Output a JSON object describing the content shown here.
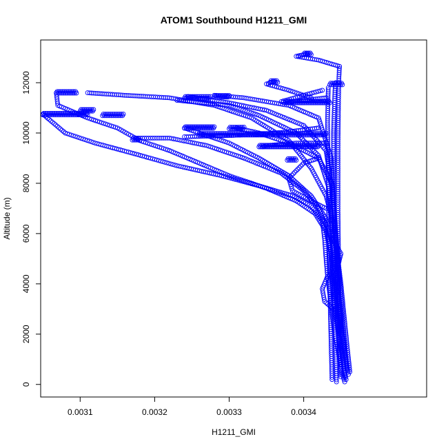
{
  "chart_data": {
    "type": "scatter",
    "title": "ATOM1 Southbound H1211_GMI",
    "xlabel": "H1211_GMI",
    "ylabel": "Altitude (m)",
    "xlim": [
      0.003047,
      0.003565
    ],
    "ylim": [
      -500,
      13700
    ],
    "x_ticks": [
      0.0031,
      0.0032,
      0.0033,
      0.0034
    ],
    "x_tick_labels": [
      "0.0031",
      "0.0032",
      "0.0033",
      "0.0034"
    ],
    "y_ticks": [
      0,
      2000,
      4000,
      6000,
      8000,
      10000,
      12000
    ],
    "y_tick_labels": [
      "0",
      "2000",
      "4000",
      "6000",
      "8000",
      "10000",
      "12000"
    ],
    "grid": false,
    "marker": "open-circle",
    "point_color": "#0000ff",
    "series": [
      {
        "values": [
          [
            0.003455,
            100
          ],
          [
            0.00345,
            600
          ],
          [
            0.003447,
            1200
          ],
          [
            0.003442,
            2000
          ],
          [
            0.003438,
            2800
          ],
          [
            0.003435,
            3600
          ],
          [
            0.003432,
            4300
          ],
          [
            0.00343,
            5000
          ],
          [
            0.003428,
            5800
          ],
          [
            0.003425,
            6500
          ],
          [
            0.00341,
            7100
          ],
          [
            0.003385,
            7500
          ],
          [
            0.00334,
            7900
          ],
          [
            0.00329,
            8300
          ],
          [
            0.00323,
            8700
          ],
          [
            0.00317,
            9200
          ],
          [
            0.00312,
            9600
          ],
          [
            0.00308,
            10000
          ],
          [
            0.00305,
            10750
          ]
        ]
      },
      {
        "values": [
          [
            0.003457,
            200
          ],
          [
            0.003452,
            1000
          ],
          [
            0.003448,
            1900
          ],
          [
            0.003444,
            2700
          ],
          [
            0.00344,
            3500
          ],
          [
            0.003438,
            4400
          ],
          [
            0.003436,
            5300
          ],
          [
            0.00343,
            6100
          ],
          [
            0.003415,
            6800
          ],
          [
            0.00339,
            7300
          ],
          [
            0.00335,
            7800
          ],
          [
            0.0033,
            8300
          ],
          [
            0.00326,
            8800
          ],
          [
            0.00322,
            9300
          ],
          [
            0.00318,
            9700
          ],
          [
            0.00315,
            10200
          ],
          [
            0.00311,
            10600
          ],
          [
            0.00307,
            11100
          ],
          [
            0.003068,
            11600
          ]
        ]
      },
      {
        "values": [
          [
            0.00345,
            300
          ],
          [
            0.003448,
            1200
          ],
          [
            0.003446,
            2200
          ],
          [
            0.003444,
            3200
          ],
          [
            0.00344,
            4200
          ],
          [
            0.003437,
            5200
          ],
          [
            0.003432,
            6200
          ],
          [
            0.00342,
            7000
          ],
          [
            0.0034,
            7700
          ],
          [
            0.00337,
            8400
          ],
          [
            0.00332,
            9000
          ],
          [
            0.00327,
            9500
          ],
          [
            0.00322,
            9800
          ],
          [
            0.003175,
            9800
          ]
        ]
      },
      {
        "values": [
          [
            0.00346,
            400
          ],
          [
            0.003455,
            1400
          ],
          [
            0.00345,
            2400
          ],
          [
            0.003446,
            3400
          ],
          [
            0.003442,
            4500
          ],
          [
            0.003438,
            5600
          ],
          [
            0.00343,
            6600
          ],
          [
            0.00341,
            7500
          ],
          [
            0.00338,
            8300
          ],
          [
            0.00334,
            9000
          ],
          [
            0.0033,
            9600
          ],
          [
            0.00326,
            10000
          ],
          [
            0.00324,
            10200
          ]
        ]
      },
      {
        "values": [
          [
            0.003462,
            500
          ],
          [
            0.003458,
            1600
          ],
          [
            0.003454,
            2800
          ],
          [
            0.00345,
            4000
          ],
          [
            0.003445,
            5200
          ],
          [
            0.00344,
            6400
          ],
          [
            0.00343,
            7500
          ],
          [
            0.00341,
            8600
          ],
          [
            0.00338,
            9700
          ],
          [
            0.00333,
            10600
          ],
          [
            0.00328,
            11100
          ],
          [
            0.00322,
            11400
          ],
          [
            0.00316,
            11500
          ],
          [
            0.00311,
            11600
          ]
        ]
      },
      {
        "values": [
          [
            0.003455,
            300
          ],
          [
            0.003452,
            1800
          ],
          [
            0.003448,
            3300
          ],
          [
            0.003445,
            4800
          ],
          [
            0.003442,
            6300
          ],
          [
            0.003438,
            7800
          ],
          [
            0.00343,
            9300
          ],
          [
            0.0034,
            10300
          ],
          [
            0.00335,
            10900
          ],
          [
            0.0033,
            11200
          ],
          [
            0.003245,
            11450
          ]
        ]
      },
      {
        "values": [
          [
            0.003458,
            600
          ],
          [
            0.003454,
            2000
          ],
          [
            0.00345,
            3500
          ],
          [
            0.003446,
            5000
          ],
          [
            0.003442,
            6500
          ],
          [
            0.003438,
            8000
          ],
          [
            0.00342,
            9000
          ],
          [
            0.00338,
            9600
          ],
          [
            0.00334,
            10000
          ],
          [
            0.00331,
            10200
          ]
        ]
      },
      {
        "values": [
          [
            0.00345,
            800
          ],
          [
            0.003446,
            2500
          ],
          [
            0.003442,
            4200
          ],
          [
            0.003438,
            6000
          ],
          [
            0.003434,
            7800
          ],
          [
            0.00342,
            9100
          ],
          [
            0.00339,
            10000
          ],
          [
            0.00334,
            10700
          ],
          [
            0.0033,
            11100
          ],
          [
            0.00323,
            11300
          ]
        ]
      },
      {
        "values": [
          [
            0.003452,
            1000
          ],
          [
            0.003448,
            3000
          ],
          [
            0.003444,
            5000
          ],
          [
            0.00344,
            7000
          ],
          [
            0.003437,
            9000
          ],
          [
            0.00342,
            10600
          ],
          [
            0.00338,
            11100
          ],
          [
            0.00332,
            11400
          ],
          [
            0.00328,
            11500
          ]
        ]
      },
      {
        "values": [
          [
            0.003444,
            100
          ],
          [
            0.003442,
            2500
          ],
          [
            0.00344,
            5000
          ],
          [
            0.00344,
            7500
          ],
          [
            0.00344,
            10000
          ],
          [
            0.003442,
            11700
          ],
          [
            0.003443,
            12000
          ]
        ]
      },
      {
        "values": [
          [
            0.003438,
            200
          ],
          [
            0.003436,
            2600
          ],
          [
            0.003434,
            5200
          ],
          [
            0.003433,
            7800
          ],
          [
            0.003432,
            10400
          ],
          [
            0.003433,
            11800
          ]
        ]
      },
      {
        "values": [
          [
            0.003448,
            2000
          ],
          [
            0.003447,
            4500
          ],
          [
            0.003446,
            7000
          ],
          [
            0.003446,
            9500
          ],
          [
            0.003447,
            12000
          ],
          [
            0.003448,
            12650
          ]
        ]
      },
      {
        "values": [
          [
            0.003448,
            12650
          ],
          [
            0.00342,
            12900
          ],
          [
            0.00339,
            13050
          ],
          [
            0.003405,
            13150
          ]
        ]
      },
      {
        "values": [
          [
            0.003425,
            11700
          ],
          [
            0.0034,
            11500
          ],
          [
            0.00337,
            11250
          ],
          [
            0.003375,
            11200
          ],
          [
            0.0034,
            11300
          ],
          [
            0.00343,
            11400
          ]
        ]
      },
      {
        "values": [
          [
            0.00341,
            11400
          ],
          [
            0.00338,
            11700
          ],
          [
            0.00335,
            11950
          ],
          [
            0.00336,
            12050
          ]
        ]
      },
      {
        "values": [
          [
            0.00343,
            9600
          ],
          [
            0.00339,
            9600
          ],
          [
            0.00335,
            9500
          ],
          [
            0.003345,
            9450
          ]
        ]
      },
      {
        "values": [
          [
            0.00342,
            10200
          ],
          [
            0.00338,
            10050
          ],
          [
            0.00334,
            9950
          ],
          [
            0.0033,
            9900
          ],
          [
            0.00324,
            9850
          ]
        ]
      },
      {
        "values": [
          [
            0.00342,
            9000
          ],
          [
            0.0034,
            8800
          ],
          [
            0.00338,
            8200
          ],
          [
            0.003385,
            7700
          ],
          [
            0.00341,
            7300
          ],
          [
            0.00343,
            7000
          ]
        ]
      },
      {
        "values": [
          [
            0.00344,
            3000
          ],
          [
            0.003428,
            3300
          ],
          [
            0.003425,
            3800
          ],
          [
            0.003432,
            4300
          ],
          [
            0.003445,
            4600
          ],
          [
            0.00345,
            5200
          ],
          [
            0.003438,
            5800
          ]
        ]
      }
    ],
    "clusters": [
      {
        "x": [
          0.003068,
          0.003095
        ],
        "y": 11620
      },
      {
        "x": [
          0.00305,
          0.00311
        ],
        "y": 10750
      },
      {
        "x": [
          0.0031,
          0.003118
        ],
        "y": 10900
      },
      {
        "x": [
          0.00313,
          0.003158
        ],
        "y": 10720
      },
      {
        "x": [
          0.00317,
          0.00318
        ],
        "y": 9750
      },
      {
        "x": [
          0.00324,
          0.003275
        ],
        "y": 11420
      },
      {
        "x": [
          0.00328,
          0.0033
        ],
        "y": 11460
      },
      {
        "x": [
          0.00324,
          0.00328
        ],
        "y": 10220
      },
      {
        "x": [
          0.0033,
          0.00332
        ],
        "y": 10200
      },
      {
        "x": [
          0.00334,
          0.00342
        ],
        "y": 9480
      },
      {
        "x": [
          0.00326,
          0.00343
        ],
        "y": 9950
      },
      {
        "x": [
          0.003375,
          0.003435
        ],
        "y": 11230
      },
      {
        "x": [
          0.003355,
          0.003365
        ],
        "y": 12050
      },
      {
        "x": [
          0.0034,
          0.00341
        ],
        "y": 13150
      },
      {
        "x": [
          0.003378,
          0.00339
        ],
        "y": 8950
      },
      {
        "x": [
          0.003435,
          0.003452
        ],
        "y": 11950
      }
    ]
  }
}
